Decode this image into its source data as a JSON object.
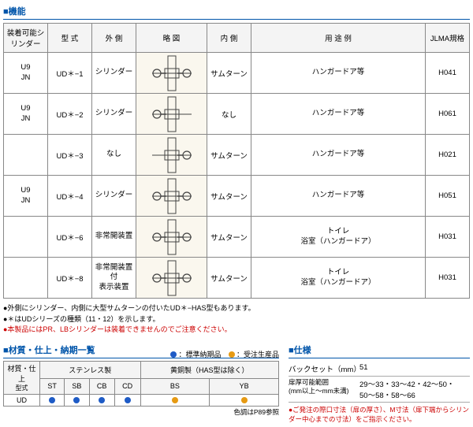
{
  "section1_title": "機能",
  "headers": {
    "cylinder": "装着可能シリンダー",
    "model": "型 式",
    "outside": "外 側",
    "diagram": "略 図",
    "inside": "内 側",
    "use": "用 途 例",
    "jlma": "JLMA規格"
  },
  "rows": [
    {
      "cyl": "U9\nJN",
      "model": "UD＊−1",
      "out": "シリンダー",
      "in": "サムターン",
      "use": "ハンガードア等",
      "jlma": "H041",
      "diag": "both"
    },
    {
      "cyl": "U9\nJN",
      "model": "UD＊−2",
      "out": "シリンダー",
      "in": "なし",
      "use": "ハンガードア等",
      "jlma": "H061",
      "diag": "out_only"
    },
    {
      "cyl": "",
      "model": "UD＊−3",
      "out": "なし",
      "in": "サムターン",
      "use": "ハンガードア等",
      "jlma": "H021",
      "diag": "in_only"
    },
    {
      "cyl": "U9\nJN",
      "model": "UD＊−4",
      "out": "シリンダー",
      "in": "サムターン",
      "use": "ハンガードア等",
      "jlma": "H051",
      "diag": "both"
    },
    {
      "cyl": "",
      "model": "UD＊−6",
      "out": "非常開装置",
      "in": "サムターン",
      "use": "トイレ\n浴室（ハンガードア）",
      "jlma": "H031",
      "diag": "both"
    },
    {
      "cyl": "",
      "model": "UD＊−8",
      "out": "非常開装置付\n表示装置",
      "in": "サムターン",
      "use": "トイレ\n浴室（ハンガードア）",
      "jlma": "H031",
      "diag": "both"
    }
  ],
  "notes": {
    "n1": "●外側にシリンダー、内側に大型サムターンの付いたUD＊−HAS型もあります。",
    "n2": "●＊はUDシリーズの種類（11・12）を示します。",
    "n3": "●本製品にはPR、LBシリンダーは装着できませんのでご注意ください。"
  },
  "section2_title": "材質・仕上・納期一覧",
  "legend": {
    "std": "：標準納期品",
    "order": "：受注生産品"
  },
  "material": {
    "col_material": "材質・仕上",
    "col_model": "型式",
    "group_stainless": "ステンレス製",
    "group_brass": "黄銅製（HAS型は除く）",
    "cols": [
      "ST",
      "SB",
      "CB",
      "CD",
      "BS",
      "YB"
    ],
    "row_model": "UD",
    "dot_types": [
      "blue",
      "blue",
      "blue",
      "blue",
      "orange",
      "orange"
    ],
    "footnote": "色調はP89参照"
  },
  "section3_title": "仕様",
  "spec": {
    "backset_label": "バックセット（mm）",
    "backset_val": "51",
    "thick_label": "扉厚可能範囲\n(mm以上〜mm未満)",
    "thick_val": "29〜33・33〜42・42〜50・50〜58・58〜66",
    "note": "●ご発注の際口寸法（扉の厚さ）、M寸法（扉下端からシリンダー中心までの寸法）をご指示ください。"
  },
  "colors": {
    "diag_bg": "#faf7ee",
    "line": "#444444"
  }
}
